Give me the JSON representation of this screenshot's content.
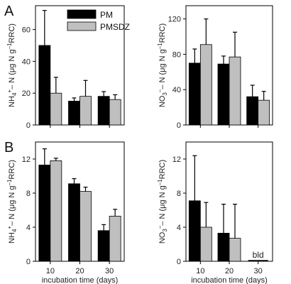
{
  "legend": [
    {
      "name": "PM",
      "color": "#000000"
    },
    {
      "name": "PMSDZ",
      "color": "#bfbfbf"
    }
  ],
  "chart_data": [
    {
      "id": "A-left",
      "panel_label": "A",
      "type": "bar",
      "categories": [
        "10",
        "20",
        "30"
      ],
      "series": [
        {
          "name": "PM",
          "values": [
            50,
            15,
            18
          ],
          "errors": [
            22,
            2,
            3
          ]
        },
        {
          "name": "PMSDZ",
          "values": [
            20,
            18,
            16
          ],
          "errors": [
            10,
            10,
            3
          ]
        }
      ],
      "ylabel_main": "NH",
      "ylabel_sub": "4",
      "ylabel_sup": "+",
      "ylabel_rest": "– N (μg N g",
      "ylabel_sup2": "–1",
      "ylabel_end": "RRC)",
      "ylim": [
        0,
        75
      ],
      "yticks": [
        "0",
        "20",
        "40",
        "60"
      ],
      "ytick_values": [
        0,
        20,
        40,
        60
      ],
      "xlabel": "",
      "show_xticks": false
    },
    {
      "id": "A-right",
      "panel_label": "",
      "type": "bar",
      "categories": [
        "10",
        "20",
        "30"
      ],
      "series": [
        {
          "name": "PM",
          "values": [
            70,
            69,
            32
          ],
          "errors": [
            16,
            9,
            13
          ]
        },
        {
          "name": "PMSDZ",
          "values": [
            91,
            77,
            28
          ],
          "errors": [
            29,
            28,
            10
          ]
        }
      ],
      "ylabel_main": "NO",
      "ylabel_sub": "3",
      "ylabel_sup": "–",
      "ylabel_rest": "– N (μg N g",
      "ylabel_sup2": "–1",
      "ylabel_end": "RRC)",
      "ylim": [
        0,
        135
      ],
      "yticks": [
        "0",
        "40",
        "80",
        "120"
      ],
      "ytick_values": [
        0,
        40,
        80,
        120
      ],
      "xlabel": "",
      "show_xticks": false
    },
    {
      "id": "B-left",
      "panel_label": "B",
      "type": "bar",
      "categories": [
        "10",
        "20",
        "30"
      ],
      "series": [
        {
          "name": "PM",
          "values": [
            11.3,
            9.1,
            3.6
          ],
          "errors": [
            1.9,
            0.6,
            0.7
          ]
        },
        {
          "name": "PMSDZ",
          "values": [
            11.8,
            8.2,
            5.3
          ],
          "errors": [
            0.3,
            0.5,
            0.8
          ]
        }
      ],
      "ylabel_main": "NH",
      "ylabel_sub": "4",
      "ylabel_sup": "+",
      "ylabel_rest": "– N (μg N g",
      "ylabel_sup2": "–1",
      "ylabel_end": "RRC)",
      "ylim": [
        0,
        14
      ],
      "yticks": [
        "0",
        "4",
        "8",
        "12"
      ],
      "ytick_values": [
        0,
        4,
        8,
        12
      ],
      "xlabel": "incubation time (days)",
      "show_xticks": true
    },
    {
      "id": "B-right",
      "panel_label": "",
      "type": "bar",
      "categories": [
        "10",
        "20",
        "30"
      ],
      "series": [
        {
          "name": "PM",
          "values": [
            7.1,
            3.3,
            0
          ],
          "errors": [
            5.3,
            3.4,
            0
          ]
        },
        {
          "name": "PMSDZ",
          "values": [
            4.0,
            2.7,
            0
          ],
          "errors": [
            2.9,
            4.0,
            0
          ]
        }
      ],
      "annotation": {
        "category": "30",
        "text": "bld"
      },
      "ylabel_main": "NO",
      "ylabel_sub": "3",
      "ylabel_sup": "–",
      "ylabel_rest": "– N (μg N g",
      "ylabel_sup2": "–1",
      "ylabel_end": "RRC)",
      "ylim": [
        0,
        14
      ],
      "yticks": [
        "0",
        "4",
        "8",
        "12"
      ],
      "ytick_values": [
        0,
        4,
        8,
        12
      ],
      "xlabel": "incubation time (days)",
      "show_xticks": true
    }
  ]
}
